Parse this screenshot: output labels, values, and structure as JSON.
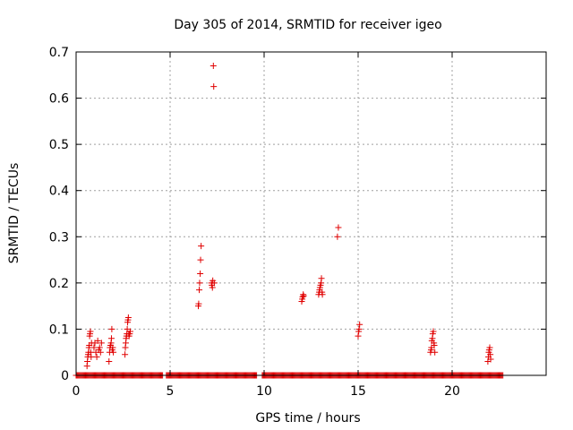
{
  "chart_data": {
    "type": "scatter",
    "title": "Day 305 of 2014, SRMTID for receiver igeo",
    "xlabel": "GPS time / hours",
    "ylabel": "SRMTID / TECUs",
    "xlim": [
      0,
      25
    ],
    "ylim": [
      0,
      0.7
    ],
    "x_ticks": [
      0,
      5,
      10,
      15,
      20
    ],
    "x_tick_labels": [
      "0",
      "5",
      "10",
      "15",
      "20"
    ],
    "y_ticks": [
      0,
      0.1,
      0.2,
      0.3,
      0.4,
      0.5,
      0.6,
      0.7
    ],
    "y_tick_labels": [
      "0",
      "0.1",
      "0.2",
      "0.3",
      "0.4",
      "0.5",
      "0.6",
      "0.7"
    ],
    "grid": true,
    "marker": "+",
    "marker_color": "#e00000",
    "series": [
      {
        "name": "SRMTID",
        "points": [
          [
            0.58,
            0.02
          ],
          [
            0.6,
            0.03
          ],
          [
            0.62,
            0.04
          ],
          [
            0.64,
            0.045
          ],
          [
            0.66,
            0.05
          ],
          [
            0.68,
            0.06
          ],
          [
            0.7,
            0.065
          ],
          [
            0.72,
            0.085
          ],
          [
            0.74,
            0.09
          ],
          [
            0.76,
            0.095
          ],
          [
            0.78,
            0.05
          ],
          [
            0.8,
            0.04
          ],
          [
            0.82,
            0.07
          ],
          [
            0.95,
            0.06
          ],
          [
            1.0,
            0.07
          ],
          [
            1.05,
            0.05
          ],
          [
            1.1,
            0.04
          ],
          [
            1.15,
            0.075
          ],
          [
            1.2,
            0.055
          ],
          [
            1.25,
            0.06
          ],
          [
            1.3,
            0.05
          ],
          [
            1.35,
            0.07
          ],
          [
            1.75,
            0.03
          ],
          [
            1.78,
            0.05
          ],
          [
            1.8,
            0.06
          ],
          [
            1.83,
            0.065
          ],
          [
            1.86,
            0.07
          ],
          [
            1.88,
            0.08
          ],
          [
            1.9,
            0.1
          ],
          [
            1.92,
            0.055
          ],
          [
            1.95,
            0.06
          ],
          [
            1.98,
            0.05
          ],
          [
            2.6,
            0.045
          ],
          [
            2.62,
            0.06
          ],
          [
            2.64,
            0.07
          ],
          [
            2.66,
            0.08
          ],
          [
            2.68,
            0.085
          ],
          [
            2.7,
            0.09
          ],
          [
            2.72,
            0.1
          ],
          [
            2.74,
            0.115
          ],
          [
            2.76,
            0.12
          ],
          [
            2.78,
            0.125
          ],
          [
            2.8,
            0.09
          ],
          [
            2.82,
            0.085
          ],
          [
            2.85,
            0.09
          ],
          [
            2.88,
            0.095
          ],
          [
            6.5,
            0.15
          ],
          [
            6.52,
            0.155
          ],
          [
            6.55,
            0.185
          ],
          [
            6.57,
            0.2
          ],
          [
            6.6,
            0.22
          ],
          [
            6.62,
            0.25
          ],
          [
            6.65,
            0.28
          ],
          [
            7.2,
            0.2
          ],
          [
            7.22,
            0.195
          ],
          [
            7.25,
            0.19
          ],
          [
            7.27,
            0.205
          ],
          [
            7.3,
            0.67
          ],
          [
            7.32,
            0.625
          ],
          [
            7.35,
            0.2
          ],
          [
            12.0,
            0.16
          ],
          [
            12.03,
            0.165
          ],
          [
            12.05,
            0.17
          ],
          [
            12.08,
            0.175
          ],
          [
            12.1,
            0.172
          ],
          [
            12.9,
            0.175
          ],
          [
            12.93,
            0.18
          ],
          [
            12.95,
            0.185
          ],
          [
            12.97,
            0.19
          ],
          [
            13.0,
            0.195
          ],
          [
            13.03,
            0.2
          ],
          [
            13.05,
            0.21
          ],
          [
            13.08,
            0.18
          ],
          [
            13.1,
            0.175
          ],
          [
            13.9,
            0.3
          ],
          [
            13.95,
            0.32
          ],
          [
            15.0,
            0.085
          ],
          [
            15.03,
            0.095
          ],
          [
            15.05,
            0.1
          ],
          [
            15.08,
            0.11
          ],
          [
            18.85,
            0.05
          ],
          [
            18.88,
            0.055
          ],
          [
            18.9,
            0.06
          ],
          [
            18.92,
            0.075
          ],
          [
            18.95,
            0.08
          ],
          [
            18.97,
            0.09
          ],
          [
            19.0,
            0.095
          ],
          [
            19.03,
            0.07
          ],
          [
            19.05,
            0.065
          ],
          [
            19.08,
            0.05
          ],
          [
            21.9,
            0.03
          ],
          [
            21.93,
            0.04
          ],
          [
            21.95,
            0.05
          ],
          [
            21.97,
            0.055
          ],
          [
            22.0,
            0.06
          ],
          [
            22.03,
            0.045
          ],
          [
            22.05,
            0.035
          ]
        ],
        "zero_intervals": [
          [
            0.0,
            4.6
          ],
          [
            4.8,
            9.6
          ],
          [
            9.9,
            22.7
          ]
        ],
        "zero_step_hours": 0.05
      }
    ]
  }
}
